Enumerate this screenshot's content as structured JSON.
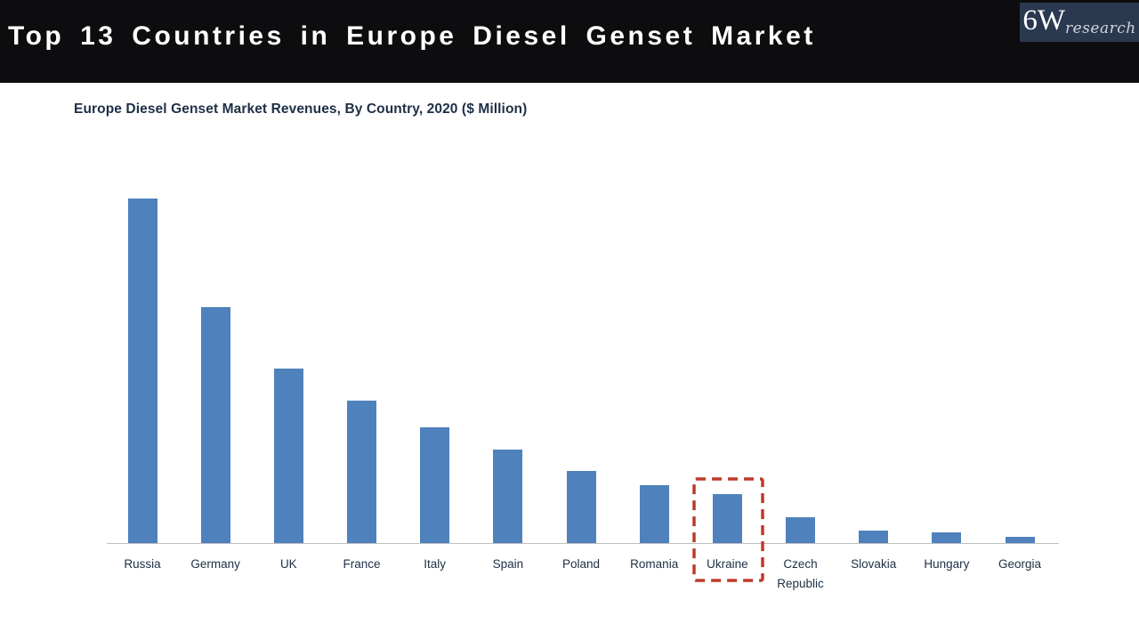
{
  "header": {
    "title": "Top 13 Countries in Europe Diesel Genset Market",
    "logo": {
      "brand": "6W",
      "sub": "research"
    }
  },
  "chart": {
    "subtitle": "Europe Diesel Genset Market Revenues, By Country, 2020 ($ Million)"
  },
  "chart_data": {
    "type": "bar",
    "title": "Europe Diesel Genset Market Revenues, By Country, 2020 ($ Million)",
    "xlabel": "",
    "ylabel": "",
    "categories": [
      "Russia",
      "Germany",
      "UK",
      "France",
      "Italy",
      "Spain",
      "Poland",
      "Romania",
      "Ukraine",
      "Czech Republic",
      "Slovakia",
      "Hungary",
      "Georgia"
    ],
    "values": [
      387,
      265,
      196,
      160,
      130,
      105,
      81,
      65,
      55,
      29,
      14,
      12,
      7
    ],
    "value_note": "no y-axis shown; values estimated from relative bar heights",
    "y_axis_shown": false,
    "grid": false,
    "legend": "none",
    "highlighted_category": "Ukraine",
    "colors": {
      "bar": "#4f81bd",
      "highlight_box": "#bf3a2a",
      "axis_line": "#bfbfbf"
    }
  }
}
